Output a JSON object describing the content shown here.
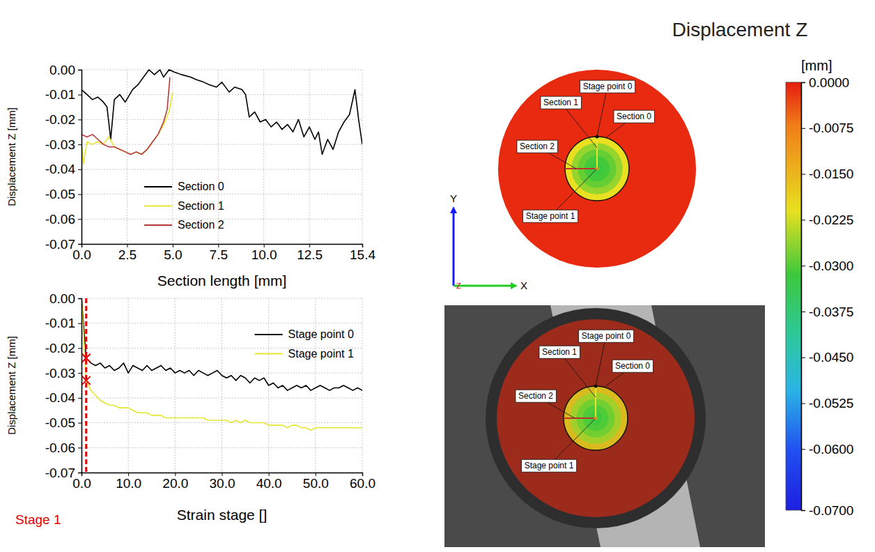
{
  "chart_data": [
    {
      "type": "line",
      "xlabel": "Section length [mm]",
      "ylabel": "Displacement Z [mm]",
      "xlim": [
        0,
        15.4
      ],
      "ylim": [
        -0.07,
        0
      ],
      "xticks": [
        {
          "value": 0,
          "label": "0.0"
        },
        2.5,
        {
          "value": 5,
          "label": "5.0"
        },
        7.5,
        {
          "value": 10,
          "label": "10.0"
        },
        12.5,
        15.4
      ],
      "yticks": [
        {
          "value": 0,
          "label": "0.00"
        },
        -0.01,
        -0.02,
        -0.03,
        -0.04,
        -0.05,
        -0.06,
        -0.07
      ],
      "grid": true,
      "legend": "lower left",
      "series": [
        {
          "name": "Section 0",
          "color": "#000000",
          "x": [
            0,
            0.3,
            0.6,
            0.9,
            1.2,
            1.4,
            1.6,
            1.8,
            2.1,
            2.4,
            2.8,
            3.1,
            3.4,
            3.7,
            4.0,
            4.3,
            4.5,
            4.8,
            5.1,
            5.5,
            6.0,
            6.3,
            6.7,
            7.0,
            7.4,
            7.7,
            8.1,
            8.4,
            8.8,
            9.0,
            9.2,
            9.5,
            9.8,
            10.1,
            10.4,
            10.7,
            11.0,
            11.3,
            11.6,
            11.9,
            12.2,
            12.5,
            12.8,
            13.0,
            13.2,
            13.5,
            13.8,
            14.1,
            14.4,
            14.7,
            15.0,
            15.2,
            15.4
          ],
          "values": [
            -0.008,
            -0.01,
            -0.012,
            -0.011,
            -0.013,
            -0.015,
            -0.028,
            -0.012,
            -0.01,
            -0.013,
            -0.008,
            -0.006,
            -0.003,
            0,
            -0.002,
            0,
            -0.003,
            0,
            -0.001,
            -0.002,
            -0.003,
            -0.004,
            -0.005,
            -0.006,
            -0.007,
            -0.005,
            -0.009,
            -0.007,
            -0.008,
            -0.01,
            -0.019,
            -0.017,
            -0.021,
            -0.02,
            -0.023,
            -0.021,
            -0.024,
            -0.022,
            -0.025,
            -0.02,
            -0.027,
            -0.023,
            -0.028,
            -0.025,
            -0.034,
            -0.028,
            -0.032,
            -0.025,
            -0.021,
            -0.018,
            -0.008,
            -0.02,
            -0.03
          ]
        },
        {
          "name": "Section 1",
          "color": "#e6e632",
          "x": [
            0,
            0.1,
            0.3,
            0.6,
            0.9,
            1.2,
            1.5,
            1.8,
            2.1,
            2.4,
            2.7,
            3.0,
            3.3,
            3.6,
            3.9,
            4.2,
            4.5,
            4.8,
            5.0
          ],
          "values": [
            -0.03,
            -0.038,
            -0.029,
            -0.03,
            -0.029,
            -0.03,
            -0.027,
            -0.031,
            -0.032,
            -0.033,
            -0.034,
            -0.033,
            -0.034,
            -0.032,
            -0.029,
            -0.026,
            -0.022,
            -0.017,
            -0.009
          ]
        },
        {
          "name": "Section 2",
          "color": "#b5393a",
          "x": [
            0,
            0.3,
            0.6,
            0.9,
            1.2,
            1.5,
            1.8,
            2.1,
            2.4,
            2.7,
            3.0,
            3.3,
            3.6,
            3.9,
            4.2,
            4.5,
            4.7,
            4.85
          ],
          "values": [
            -0.026,
            -0.027,
            -0.026,
            -0.028,
            -0.03,
            -0.031,
            -0.031,
            -0.032,
            -0.033,
            -0.034,
            -0.033,
            -0.034,
            -0.032,
            -0.029,
            -0.026,
            -0.021,
            -0.016,
            -0.003
          ]
        }
      ]
    },
    {
      "type": "line",
      "xlabel": "Strain stage []",
      "ylabel": "Displacement Z [mm]",
      "xlim": [
        0,
        60
      ],
      "ylim": [
        -0.07,
        0
      ],
      "xticks": [
        {
          "value": 0,
          "label": "0.0"
        },
        {
          "value": 10,
          "label": "10.0"
        },
        {
          "value": 20,
          "label": "20.0"
        },
        {
          "value": 30,
          "label": "30.0"
        },
        {
          "value": 40,
          "label": "40.0"
        },
        {
          "value": 50,
          "label": "50.0"
        },
        {
          "value": 60,
          "label": "60.0"
        }
      ],
      "yticks": [
        {
          "value": 0,
          "label": "0.00"
        },
        -0.01,
        -0.02,
        -0.03,
        -0.04,
        -0.05,
        -0.06,
        -0.07
      ],
      "grid": true,
      "legend": "upper right",
      "current_stage": 1,
      "stage_label": "Stage 1",
      "x": [
        0,
        1,
        2,
        3,
        4,
        5,
        6,
        7,
        8,
        9,
        10,
        11,
        12,
        13,
        14,
        15,
        16,
        17,
        18,
        19,
        20,
        21,
        22,
        23,
        24,
        25,
        26,
        27,
        28,
        29,
        30,
        31,
        32,
        33,
        34,
        35,
        36,
        37,
        38,
        39,
        40,
        41,
        42,
        43,
        44,
        45,
        46,
        47,
        48,
        49,
        50,
        51,
        52,
        53,
        54,
        55,
        56,
        57,
        58,
        59,
        60
      ],
      "series": [
        {
          "name": "Stage point 0",
          "color": "#000000",
          "values": [
            0,
            -0.024,
            -0.026,
            -0.027,
            -0.026,
            -0.028,
            -0.027,
            -0.029,
            -0.028,
            -0.026,
            -0.03,
            -0.027,
            -0.028,
            -0.029,
            -0.027,
            -0.029,
            -0.028,
            -0.027,
            -0.029,
            -0.028,
            -0.03,
            -0.029,
            -0.03,
            -0.029,
            -0.031,
            -0.029,
            -0.03,
            -0.031,
            -0.03,
            -0.029,
            -0.031,
            -0.032,
            -0.031,
            -0.033,
            -0.031,
            -0.032,
            -0.034,
            -0.032,
            -0.033,
            -0.032,
            -0.035,
            -0.034,
            -0.036,
            -0.035,
            -0.037,
            -0.036,
            -0.035,
            -0.036,
            -0.035,
            -0.037,
            -0.036,
            -0.035,
            -0.036,
            -0.037,
            -0.036,
            -0.036,
            -0.035,
            -0.036,
            -0.037,
            -0.036,
            -0.037
          ]
        },
        {
          "name": "Stage point 1",
          "color": "#e6e632",
          "values": [
            0,
            -0.033,
            -0.037,
            -0.039,
            -0.041,
            -0.042,
            -0.043,
            -0.043,
            -0.044,
            -0.044,
            -0.044,
            -0.045,
            -0.046,
            -0.046,
            -0.046,
            -0.047,
            -0.047,
            -0.047,
            -0.048,
            -0.048,
            -0.048,
            -0.048,
            -0.048,
            -0.048,
            -0.048,
            -0.048,
            -0.048,
            -0.049,
            -0.049,
            -0.049,
            -0.049,
            -0.049,
            -0.05,
            -0.049,
            -0.05,
            -0.049,
            -0.05,
            -0.05,
            -0.05,
            -0.05,
            -0.051,
            -0.051,
            -0.051,
            -0.051,
            -0.052,
            -0.051,
            -0.051,
            -0.052,
            -0.052,
            -0.053,
            -0.052,
            -0.052,
            -0.052,
            -0.052,
            -0.052,
            -0.052,
            -0.052,
            -0.052,
            -0.052,
            -0.052,
            -0.052
          ]
        }
      ]
    }
  ],
  "field_plot": {
    "type": "heatmap",
    "title": "Displacement Z",
    "colorbar_label": "[mm]",
    "colorbar_range": [
      0,
      -0.07
    ],
    "colorbar_ticks": [
      {
        "value": 0,
        "label": "0.0000"
      },
      -0.0075,
      {
        "value": -0.015,
        "label": "-0.0150"
      },
      -0.0225,
      {
        "value": -0.03,
        "label": "-0.0300"
      },
      -0.0375,
      {
        "value": -0.045,
        "label": "-0.0450"
      },
      -0.0525,
      {
        "value": -0.06,
        "label": "-0.0600"
      },
      {
        "value": -0.07,
        "label": "-0.0700"
      }
    ],
    "outer_value": -0.001,
    "inner_values": [
      -0.021,
      -0.026,
      -0.029,
      -0.031,
      -0.032
    ],
    "annotations": [
      "Stage point 0",
      "Section 1",
      "Section 0",
      "Section 2",
      "Stage point 1"
    ],
    "axis_names": {
      "x": "X",
      "y": "Y",
      "z": "Z"
    }
  }
}
